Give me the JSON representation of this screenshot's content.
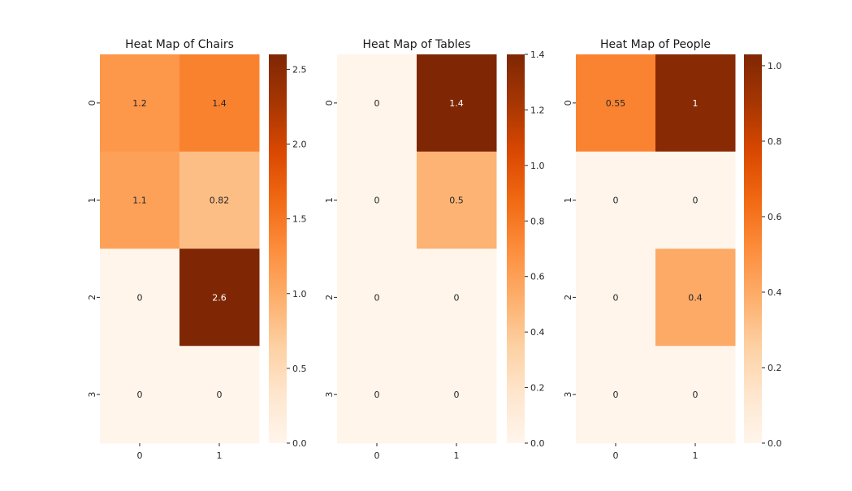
{
  "chart_data": [
    {
      "type": "heatmap",
      "title": "Heat Map of Chairs",
      "x_categories": [
        "0",
        "1"
      ],
      "y_categories": [
        "0",
        "1",
        "2",
        "3"
      ],
      "values": [
        [
          1.2,
          1.4
        ],
        [
          1.1,
          0.82
        ],
        [
          0,
          2.6
        ],
        [
          0,
          0
        ]
      ],
      "cell_labels": [
        [
          "1.2",
          "1.4"
        ],
        [
          "1.1",
          "0.82"
        ],
        [
          "0",
          "2.6"
        ],
        [
          "0",
          "0"
        ]
      ],
      "colorbar": {
        "vmin": 0,
        "vmax": 2.6,
        "ticks": [
          0.0,
          0.5,
          1.0,
          1.5,
          2.0,
          2.5
        ],
        "tick_labels": [
          "0.0",
          "0.5",
          "1.0",
          "1.5",
          "2.0",
          "2.5"
        ]
      },
      "colormap": "Oranges"
    },
    {
      "type": "heatmap",
      "title": "Heat Map of Tables",
      "x_categories": [
        "0",
        "1"
      ],
      "y_categories": [
        "0",
        "1",
        "2",
        "3"
      ],
      "values": [
        [
          0,
          1.4
        ],
        [
          0,
          0.5
        ],
        [
          0,
          0
        ],
        [
          0,
          0
        ]
      ],
      "cell_labels": [
        [
          "0",
          "1.4"
        ],
        [
          "0",
          "0.5"
        ],
        [
          "0",
          "0"
        ],
        [
          "0",
          "0"
        ]
      ],
      "colorbar": {
        "vmin": 0,
        "vmax": 1.4,
        "ticks": [
          0.0,
          0.2,
          0.4,
          0.6,
          0.8,
          1.0,
          1.2,
          1.4
        ],
        "tick_labels": [
          "0.0",
          "0.2",
          "0.4",
          "0.6",
          "0.8",
          "1.0",
          "1.2",
          "1.4"
        ]
      },
      "colormap": "Oranges"
    },
    {
      "type": "heatmap",
      "title": "Heat Map of People",
      "x_categories": [
        "0",
        "1"
      ],
      "y_categories": [
        "0",
        "1",
        "2",
        "3"
      ],
      "values": [
        [
          0.55,
          1.0
        ],
        [
          0,
          0
        ],
        [
          0,
          0.4
        ],
        [
          0,
          0
        ]
      ],
      "cell_labels": [
        [
          "0.55",
          "1"
        ],
        [
          "0",
          "0"
        ],
        [
          "0",
          "0.4"
        ],
        [
          "0",
          "0"
        ]
      ],
      "colorbar": {
        "vmin": 0,
        "vmax": 1.03,
        "ticks": [
          0.0,
          0.2,
          0.4,
          0.6,
          0.8,
          1.0
        ],
        "tick_labels": [
          "0.0",
          "0.2",
          "0.4",
          "0.6",
          "0.8",
          "1.0"
        ]
      },
      "colormap": "Oranges"
    }
  ],
  "colors": {
    "oranges_stops": [
      "#fff5eb",
      "#fee6ce",
      "#fdd0a2",
      "#fdae6b",
      "#fd8d3c",
      "#f16913",
      "#d94801",
      "#a63603",
      "#7f2704"
    ],
    "text_dark": "#262626",
    "text_light": "#ffffff"
  }
}
